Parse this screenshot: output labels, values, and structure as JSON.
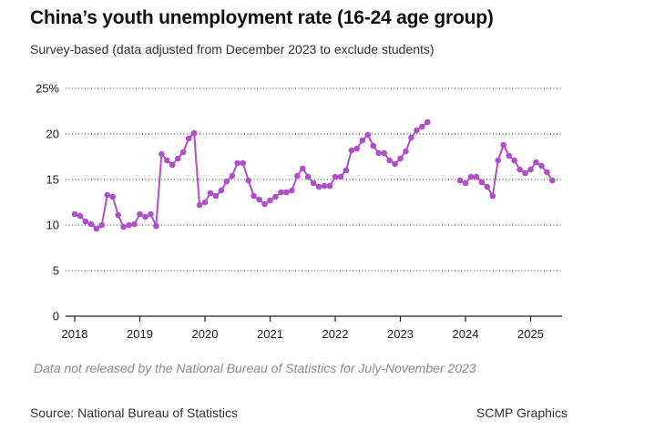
{
  "title": "China’s youth unemployment rate (16-24 age group)",
  "subtitle": "Survey-based (data adjusted from December 2023 to exclude students)",
  "note": "Data not released by the National Bureau of Statistics for July-November 2023",
  "source": "Source: National Bureau of Statistics",
  "credit": "SCMP Graphics",
  "chart_data": {
    "type": "line",
    "title": "China’s youth unemployment rate (16-24 age group)",
    "subtitle": "Survey-based (data adjusted from December 2023 to exclude students)",
    "xlabel": "",
    "ylabel": "",
    "ylim": [
      0,
      25
    ],
    "xlim": [
      2018,
      2025.5
    ],
    "y_ticks": [
      0,
      5,
      10,
      15,
      20,
      25
    ],
    "y_tick_labels": [
      "0",
      "5",
      "10",
      "15",
      "20",
      "25%"
    ],
    "x_ticks": [
      2018,
      2019,
      2020,
      2021,
      2022,
      2023,
      2024,
      2025
    ],
    "x_tick_labels": [
      "2018",
      "2019",
      "2020",
      "2021",
      "2022",
      "2023",
      "2024",
      "2025"
    ],
    "grid": "horizontal dotted",
    "line_color": "#b04fc9",
    "series": [
      {
        "segments": [
          {
            "start": "2018-01",
            "values": [
              11.2,
              11.0,
              10.4,
              10.1,
              9.6,
              10.0,
              13.3,
              13.1,
              11.1,
              9.8,
              10.0,
              10.1,
              11.2,
              10.9,
              11.2,
              9.9,
              17.8,
              17.1,
              16.6,
              17.3,
              18.0,
              19.5,
              20.1,
              12.2,
              12.5,
              13.5,
              13.2,
              13.8,
              14.8,
              15.4,
              16.8,
              16.8,
              14.9,
              13.2,
              12.8,
              12.3,
              12.7,
              13.1,
              13.6,
              13.6,
              13.8,
              15.4,
              16.2,
              15.3,
              14.6,
              14.2,
              14.3,
              14.3,
              15.3,
              15.3,
              16.0,
              18.2,
              18.4,
              19.3,
              19.9,
              18.7,
              17.9,
              17.9,
              17.1,
              16.7,
              17.3,
              18.1,
              19.6,
              20.4,
              20.8,
              21.3
            ]
          },
          {
            "start": "2023-12",
            "values": [
              14.9,
              14.6,
              15.3,
              15.3,
              14.7,
              14.2,
              13.2,
              17.1,
              18.8,
              17.6,
              17.1,
              16.1,
              15.7,
              16.1,
              16.9,
              16.5,
              15.8,
              14.9
            ]
          }
        ]
      }
    ]
  }
}
